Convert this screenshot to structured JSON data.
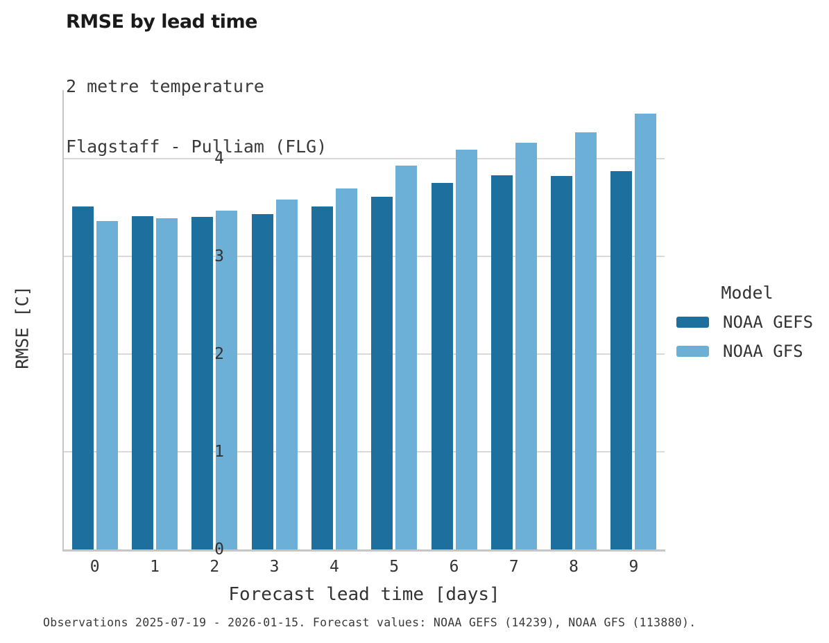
{
  "header": {
    "title": "RMSE by lead time",
    "subtitle_line1": "2 metre temperature",
    "subtitle_line2": "Flagstaff - Pulliam (FLG)"
  },
  "axes": {
    "x_title": "Forecast lead time [days]",
    "y_title": "RMSE [C]"
  },
  "legend": {
    "title": "Model",
    "entries": [
      {
        "label": "NOAA GEFS",
        "color": "#1d6f9e"
      },
      {
        "label": "NOAA GFS",
        "color": "#6cb0d8"
      }
    ]
  },
  "footer": {
    "caption": "Observations 2025-07-19 - 2026-01-15. Forecast values: NOAA GEFS (14239), NOAA GFS (113880)."
  },
  "colors": {
    "gefs_bar": "#1d6f9e",
    "gfs_bar": "#6cb0d8",
    "gridline": "#d9d9d9",
    "axis_line": "#c6c6c6",
    "tick_text": "#333333"
  },
  "chart_data": {
    "type": "bar",
    "title": "RMSE by lead time",
    "subtitle": [
      "2 metre temperature",
      "Flagstaff - Pulliam (FLG)"
    ],
    "xlabel": "Forecast lead time [days]",
    "ylabel": "RMSE [C]",
    "categories": [
      0,
      1,
      2,
      3,
      4,
      5,
      6,
      7,
      8,
      9
    ],
    "series": [
      {
        "name": "NOAA GEFS",
        "color": "#1d6f9e",
        "values": [
          3.51,
          3.41,
          3.4,
          3.43,
          3.51,
          3.61,
          3.75,
          3.83,
          3.82,
          3.87
        ]
      },
      {
        "name": "NOAA GFS",
        "color": "#6cb0d8",
        "values": [
          3.36,
          3.39,
          3.47,
          3.58,
          3.69,
          3.93,
          4.09,
          4.16,
          4.27,
          4.46
        ]
      }
    ],
    "ylim": [
      0,
      4.7
    ],
    "yticks": [
      0,
      1,
      2,
      3,
      4
    ],
    "grid": "horizontal-only",
    "legend_position": "right",
    "caption": "Observations 2025-07-19 - 2026-01-15. Forecast values: NOAA GEFS (14239), NOAA GFS (113880)."
  }
}
